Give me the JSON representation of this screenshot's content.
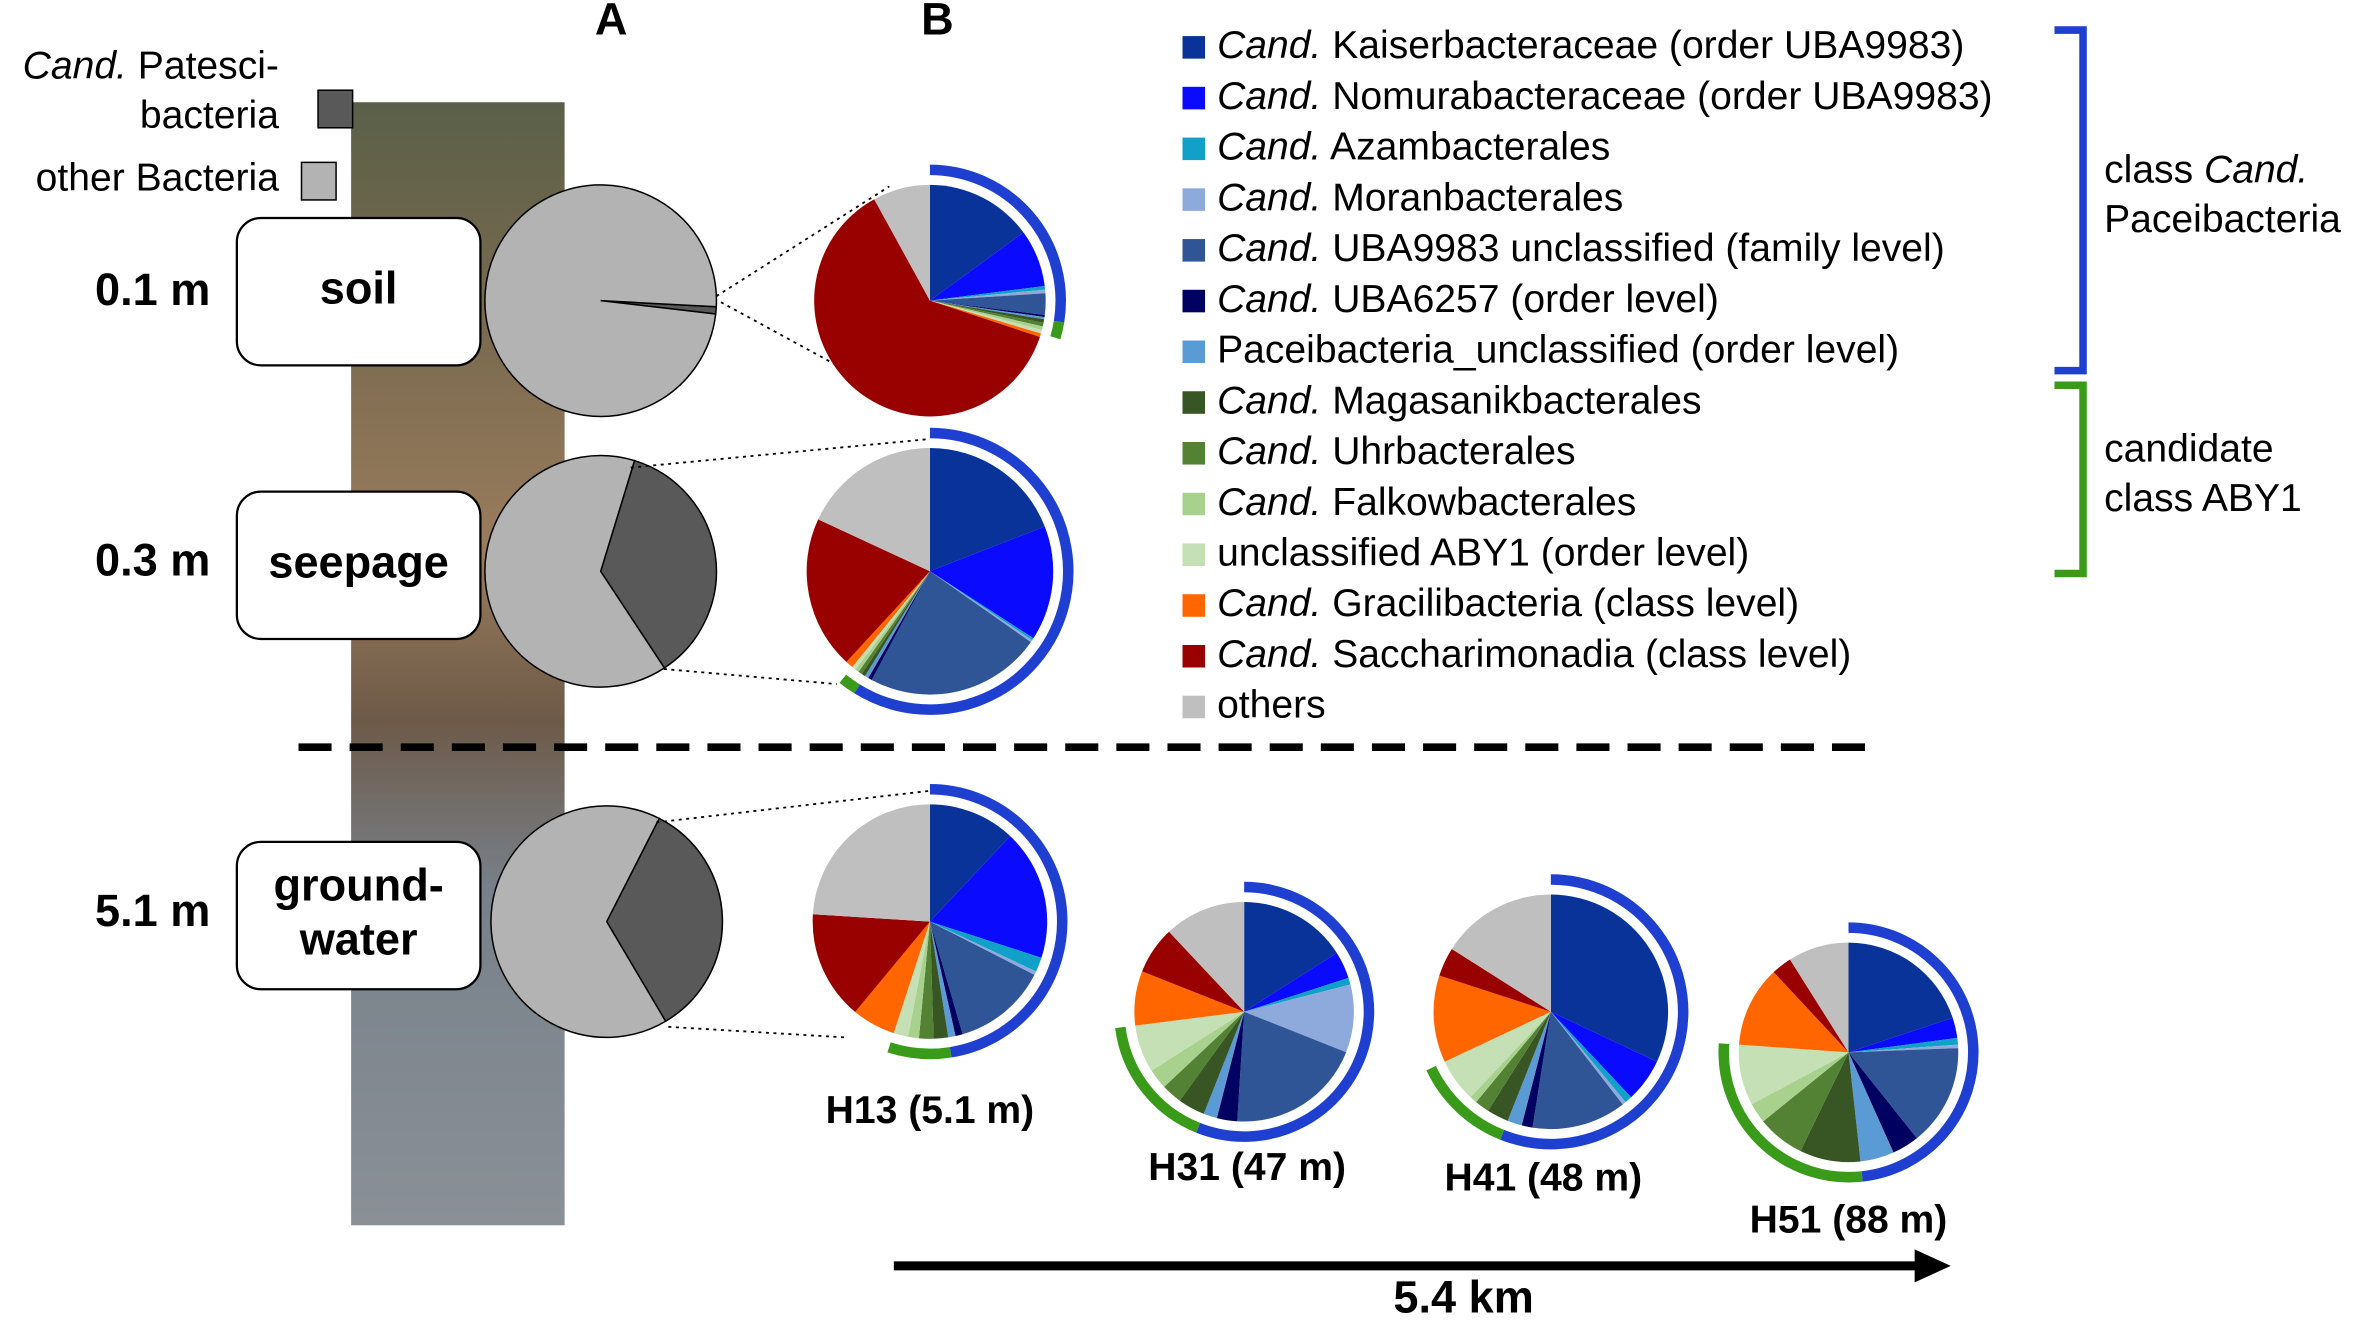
{
  "chart_data": [
    {
      "type": "pie",
      "title": "A",
      "categories": [
        "0.1 m",
        "0.3 m",
        "5.1 m"
      ],
      "habitats": [
        "soil",
        "seepage",
        "ground- water"
      ],
      "series": [
        {
          "name": "Cand. Patesci- bacteria",
          "color": "#595959",
          "values": [
            1,
            36,
            34
          ]
        },
        {
          "name": "other Bacteria",
          "color": "#b3b3b3",
          "values": [
            99,
            64,
            66
          ]
        }
      ]
    },
    {
      "type": "pie",
      "title": "B",
      "categories": [
        null,
        null,
        "H13 (5.1 m)",
        "H31 (47 m)",
        "H41 (48 m)",
        "H51 (88 m)"
      ],
      "annotation": "5.4 km",
      "groups": [
        {
          "label": "class Cand. Paceibacteria",
          "color": "#1f3fd1",
          "series": [
            {
              "name": "Cand. Kaiserbacteraceae (order UBA9983)",
              "color": "#0a3399",
              "values": [
                15,
                19,
                12,
                16,
                32,
                20
              ]
            },
            {
              "name": "Cand. Nomurabacteraceae (order UBA9983)",
              "color": "#0a0aff",
              "values": [
                8,
                15,
                18,
                4,
                6,
                3
              ]
            },
            {
              "name": "Cand. Azambacterales",
              "color": "#10a0c8",
              "values": [
                0.5,
                0.3,
                2,
                1,
                1,
                1
              ]
            },
            {
              "name": "Cand. Moranbacterales",
              "color": "#8eaadc",
              "values": [
                0.5,
                0.3,
                0.5,
                10,
                0.5,
                0.5
              ]
            },
            {
              "name": "Cand. UBA9983 unclassified (family level)",
              "color": "#2f5597",
              "values": [
                3,
                23,
                13,
                20,
                13,
                15
              ]
            },
            {
              "name": "Cand. UBA6257 (order level)",
              "color": "#000060",
              "values": [
                0.3,
                0.5,
                1,
                3,
                1.5,
                4
              ]
            },
            {
              "name": "Paceibacteria_unclassified (order level)",
              "color": "#5b9bd5",
              "values": [
                0.3,
                0.5,
                1,
                2,
                2,
                5
              ]
            }
          ]
        },
        {
          "label": "candidate class ABY1",
          "color": "#3a9a1a",
          "series": [
            {
              "name": "Cand. Magasanikbacterales",
              "color": "#375623",
              "values": [
                0.5,
                0.5,
                2,
                4,
                3,
                9
              ]
            },
            {
              "name": "Cand. Uhrbacterales",
              "color": "#548235",
              "values": [
                0.5,
                0.5,
                2,
                3,
                2,
                7
              ]
            },
            {
              "name": "Cand. Falkowbacterales",
              "color": "#a9d18e",
              "values": [
                0.5,
                0.5,
                1.5,
                3,
                1,
                3
              ]
            },
            {
              "name": "unclassified ABY1 (order level)",
              "color": "#c5e0b4",
              "values": [
                0.5,
                0.5,
                2,
                7,
                6,
                9
              ]
            }
          ]
        },
        {
          "series": [
            {
              "name": "Cand. Gracilibacteria (class level)",
              "color": "#ff6600",
              "values": [
                0.5,
                1,
                6,
                8,
                12,
                12
              ]
            },
            {
              "name": "Cand. Saccharimonadia (class level)",
              "color": "#990000",
              "values": [
                62,
                20,
                15,
                7,
                4,
                3
              ]
            },
            {
              "name": "others",
              "color": "#bfbfbf",
              "values": [
                8,
                18,
                24,
                12,
                16,
                9
              ]
            }
          ]
        }
      ]
    }
  ]
}
